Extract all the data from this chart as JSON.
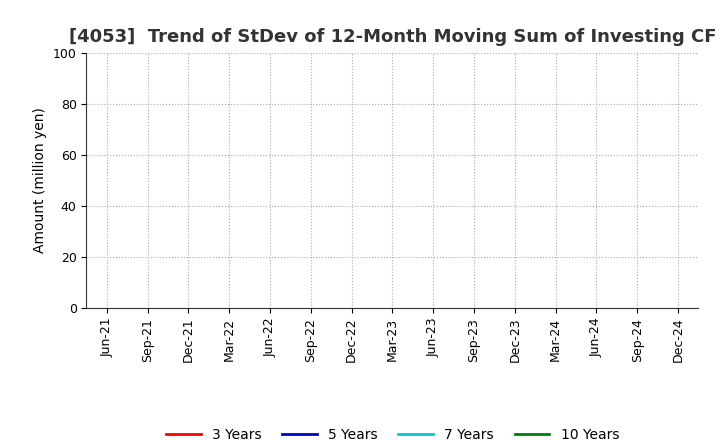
{
  "title": "[4053]  Trend of StDev of 12-Month Moving Sum of Investing CF",
  "ylabel": "Amount (million yen)",
  "ylim": [
    0,
    100
  ],
  "yticks": [
    0,
    20,
    40,
    60,
    80,
    100
  ],
  "x_labels": [
    "Jun-21",
    "Sep-21",
    "Dec-21",
    "Mar-22",
    "Jun-22",
    "Sep-22",
    "Dec-22",
    "Mar-23",
    "Jun-23",
    "Sep-23",
    "Dec-23",
    "Mar-24",
    "Jun-24",
    "Sep-24",
    "Dec-24"
  ],
  "legend_entries": [
    "3 Years",
    "5 Years",
    "7 Years",
    "10 Years"
  ],
  "legend_colors": [
    "#ff0000",
    "#0000cd",
    "#00cccc",
    "#008000"
  ],
  "background_color": "#ffffff",
  "grid_color": "#aaaaaa",
  "title_fontsize": 13,
  "label_fontsize": 10,
  "tick_fontsize": 9,
  "title_color": "#333333"
}
